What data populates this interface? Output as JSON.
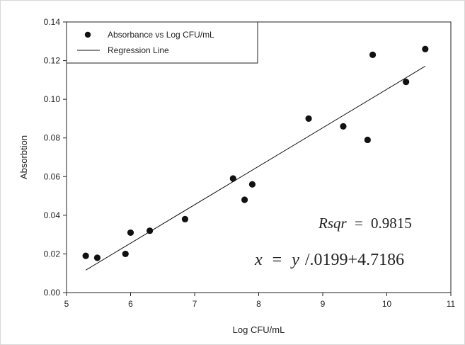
{
  "chart_data": {
    "type": "scatter",
    "xlabel": "Log CFU/mL",
    "ylabel": "Absorbtion",
    "xlim": [
      5,
      11
    ],
    "ylim": [
      0,
      0.14
    ],
    "x_ticks": [
      "5",
      "6",
      "7",
      "8",
      "9",
      "10",
      "11"
    ],
    "y_ticks": [
      "0.00",
      "0.02",
      "0.04",
      "0.06",
      "0.08",
      "0.10",
      "0.12",
      "0.14"
    ],
    "grid": false,
    "legend_position": "top-left",
    "series": [
      {
        "name": "Absorbance vs Log CFU/mL",
        "kind": "scatter",
        "x": [
          5.3,
          5.48,
          5.92,
          6.0,
          6.3,
          6.85,
          7.6,
          7.78,
          7.9,
          8.78,
          9.32,
          9.7,
          9.78,
          10.3,
          10.6
        ],
        "y": [
          0.019,
          0.018,
          0.02,
          0.031,
          0.032,
          0.038,
          0.059,
          0.048,
          0.056,
          0.09,
          0.086,
          0.079,
          0.123,
          0.109,
          0.126
        ]
      },
      {
        "name": "Regression Line",
        "kind": "line",
        "x": [
          5.3,
          10.6
        ],
        "y": [
          0.0116,
          0.1171
        ]
      }
    ],
    "annotations": {
      "rsqr_lhs": "Rsqr",
      "rsqr_eq": "=",
      "rsqr_value": "0.9815",
      "equation_lhs": "x",
      "equation_eq": "=",
      "equation_rhs": "y",
      "equation_tail": "/.0199+4.7186"
    },
    "colors": {
      "marker": "#111111",
      "line": "#111111",
      "axis": "#222222"
    }
  }
}
